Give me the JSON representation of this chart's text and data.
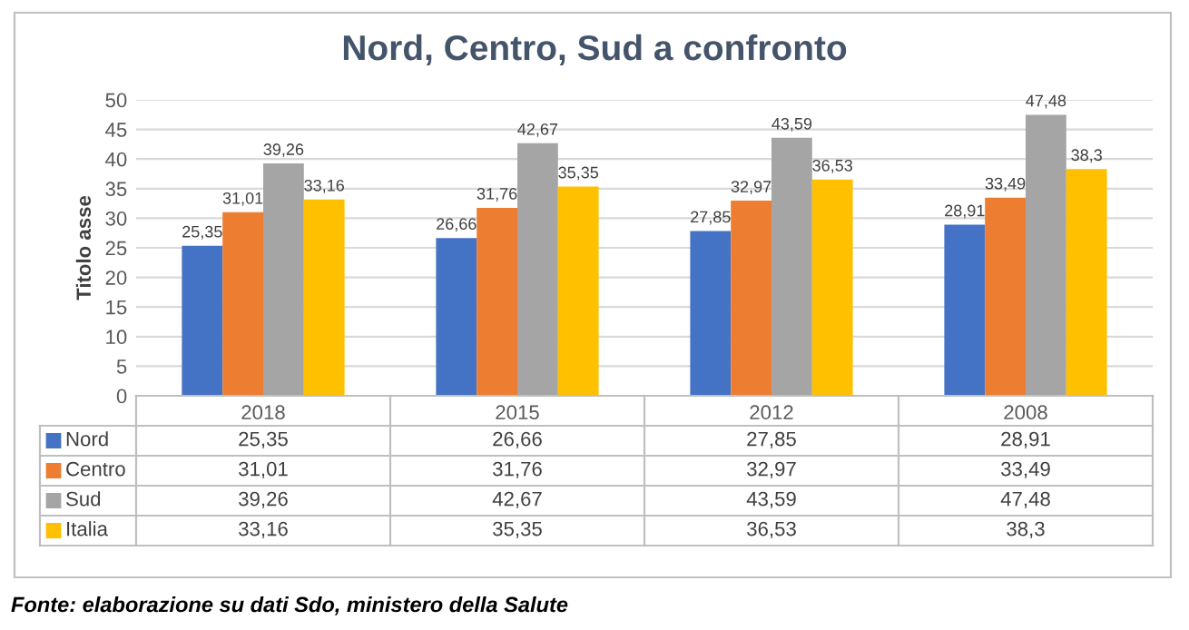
{
  "chart_data": {
    "type": "bar",
    "title": "Nord, Centro, Sud a confronto",
    "ylabel": "Titolo asse",
    "categories": [
      "2018",
      "2015",
      "2012",
      "2008"
    ],
    "series": [
      {
        "name": "Nord",
        "color": "#4472c4",
        "values": [
          25.35,
          26.66,
          27.85,
          28.91
        ],
        "value_labels": [
          "25,35",
          "26,66",
          "27,85",
          "28,91"
        ]
      },
      {
        "name": "Centro",
        "color": "#ed7d31",
        "values": [
          31.01,
          31.76,
          32.97,
          33.49
        ],
        "value_labels": [
          "31,01",
          "31,76",
          "32,97",
          "33,49"
        ]
      },
      {
        "name": "Sud",
        "color": "#a5a5a5",
        "values": [
          39.26,
          42.67,
          43.59,
          47.48
        ],
        "value_labels": [
          "39,26",
          "42,67",
          "43,59",
          "47,48"
        ]
      },
      {
        "name": "Italia",
        "color": "#ffc000",
        "values": [
          33.16,
          35.35,
          36.53,
          38.3
        ],
        "value_labels": [
          "33,16",
          "35,35",
          "36,53",
          "38,3"
        ]
      }
    ],
    "ylim": [
      0,
      50
    ],
    "yticks": [
      0,
      5,
      10,
      15,
      20,
      25,
      30,
      35,
      40,
      45,
      50
    ],
    "grid": "y",
    "legend": "bottom",
    "annotations": [
      "Fonte: elaborazione su dati Sdo, ministero della Salute"
    ]
  }
}
